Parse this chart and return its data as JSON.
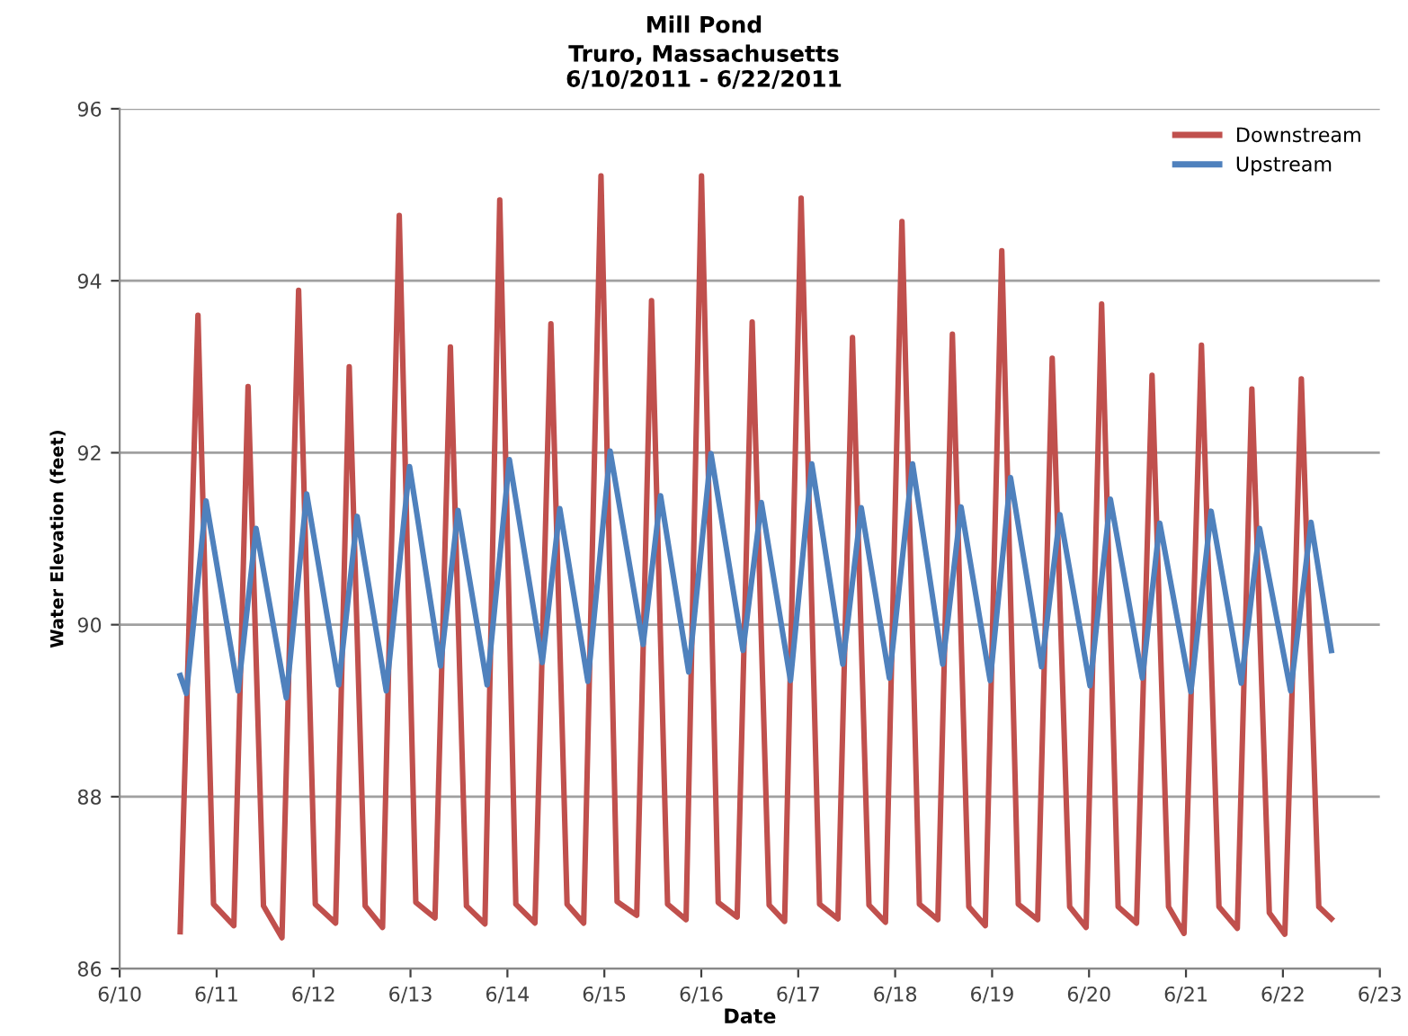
{
  "chart_data": {
    "type": "line",
    "title": "Mill Pond",
    "subtitle": "Truro, Massachusetts\n6/10/2011 - 6/22/2011",
    "xlabel": "Date",
    "ylabel": "Water Elevation (feet)",
    "xlim": [
      "2011-06-10",
      "2011-06-23"
    ],
    "xticks": [
      {
        "value": "2011-06-10",
        "label": "6/10"
      },
      {
        "value": "2011-06-11",
        "label": "6/11"
      },
      {
        "value": "2011-06-12",
        "label": "6/12"
      },
      {
        "value": "2011-06-13",
        "label": "6/13"
      },
      {
        "value": "2011-06-14",
        "label": "6/14"
      },
      {
        "value": "2011-06-15",
        "label": "6/15"
      },
      {
        "value": "2011-06-16",
        "label": "6/16"
      },
      {
        "value": "2011-06-17",
        "label": "6/17"
      },
      {
        "value": "2011-06-18",
        "label": "6/18"
      },
      {
        "value": "2011-06-19",
        "label": "6/19"
      },
      {
        "value": "2011-06-20",
        "label": "6/20"
      },
      {
        "value": "2011-06-21",
        "label": "6/21"
      },
      {
        "value": "2011-06-22",
        "label": "6/22"
      },
      {
        "value": "2011-06-23",
        "label": "6/23"
      }
    ],
    "ylim": [
      86,
      96
    ],
    "yticks": [
      86,
      88,
      90,
      92,
      94,
      96
    ],
    "grid": "y",
    "legend": "top right",
    "marker": "none",
    "line_style": "solid",
    "series": [
      {
        "name": "Downstream",
        "color": "#c0504d",
        "x": [
          "2011-06-10T14:59",
          "2011-06-10T19:23",
          "2011-06-10T23:14",
          "2011-06-11T04:16",
          "2011-06-11T07:47",
          "2011-06-11T11:36",
          "2011-06-11T16:11",
          "2011-06-11T20:18",
          "2011-06-12T00:26",
          "2011-06-12T05:28",
          "2011-06-12T08:50",
          "2011-06-12T12:47",
          "2011-06-12T17:05",
          "2011-06-12T21:13",
          "2011-06-13T01:19",
          "2011-06-13T06:04",
          "2011-06-13T09:53",
          "2011-06-13T13:51",
          "2011-06-13T18:26",
          "2011-06-13T22:06",
          "2011-06-14T02:05",
          "2011-06-14T06:49",
          "2011-06-14T10:46",
          "2011-06-14T14:46",
          "2011-06-14T18:53",
          "2011-06-14T23:10",
          "2011-06-15T03:09",
          "2011-06-15T08:01",
          "2011-06-15T11:41",
          "2011-06-15T15:39",
          "2011-06-15T20:14",
          "2011-06-16T00:03",
          "2011-06-16T04:11",
          "2011-06-16T08:53",
          "2011-06-16T12:36",
          "2011-06-16T16:48",
          "2011-06-16T20:38",
          "2011-06-17T00:43",
          "2011-06-17T05:17",
          "2011-06-17T09:50",
          "2011-06-17T13:26",
          "2011-06-17T17:31",
          "2011-06-17T21:36",
          "2011-06-18T01:41",
          "2011-06-18T06:00",
          "2011-06-18T10:34",
          "2011-06-18T14:10",
          "2011-06-18T18:14",
          "2011-06-18T22:19",
          "2011-06-19T02:24",
          "2011-06-19T06:29",
          "2011-06-19T11:17",
          "2011-06-19T14:53",
          "2011-06-19T19:12",
          "2011-06-19T23:17",
          "2011-06-20T03:07",
          "2011-06-20T07:12",
          "2011-06-20T11:46",
          "2011-06-20T15:36",
          "2011-06-20T19:41",
          "2011-06-20T23:31",
          "2011-06-21T03:50",
          "2011-06-21T08:10",
          "2011-06-21T12:43",
          "2011-06-21T16:19",
          "2011-06-21T20:38",
          "2011-06-22T00:29",
          "2011-06-22T04:34",
          "2011-06-22T08:53",
          "2011-06-22T12:00"
        ],
        "values": [
          86.43,
          93.6,
          86.75,
          86.5,
          92.77,
          86.73,
          86.36,
          93.89,
          86.75,
          86.53,
          93.0,
          86.73,
          86.48,
          94.76,
          86.77,
          86.59,
          93.23,
          86.73,
          86.52,
          94.94,
          86.75,
          86.53,
          93.5,
          86.75,
          86.53,
          95.22,
          86.78,
          86.62,
          93.77,
          86.75,
          86.57,
          95.22,
          86.77,
          86.6,
          93.52,
          86.74,
          86.55,
          94.96,
          86.75,
          86.58,
          93.34,
          86.74,
          86.54,
          94.69,
          86.75,
          86.57,
          93.38,
          86.72,
          86.5,
          94.35,
          86.75,
          86.57,
          93.1,
          86.72,
          86.48,
          93.73,
          86.72,
          86.53,
          92.9,
          86.72,
          86.41,
          93.25,
          86.72,
          86.47,
          92.74,
          86.65,
          86.4,
          92.86,
          86.72,
          86.58
        ]
      },
      {
        "name": "Upstream",
        "color": "#4f81bd",
        "x": [
          "2011-06-10T14:59",
          "2011-06-10T16:31",
          "2011-06-10T21:23",
          "2011-06-11T05:20",
          "2011-06-11T09:46",
          "2011-06-11T17:15",
          "2011-06-11T22:18",
          "2011-06-12T06:14",
          "2011-06-12T10:48",
          "2011-06-12T18:00",
          "2011-06-12T23:46",
          "2011-06-13T07:26",
          "2011-06-13T11:46",
          "2011-06-13T18:58",
          "2011-06-14T00:29",
          "2011-06-14T08:38",
          "2011-06-14T12:58",
          "2011-06-14T19:55",
          "2011-06-15T01:26",
          "2011-06-15T09:36",
          "2011-06-15T13:55",
          "2011-06-15T20:53",
          "2011-06-16T02:24",
          "2011-06-16T10:19",
          "2011-06-16T14:53",
          "2011-06-16T22:05",
          "2011-06-17T03:22",
          "2011-06-17T11:02",
          "2011-06-17T15:36",
          "2011-06-17T22:34",
          "2011-06-18T04:19",
          "2011-06-18T11:46",
          "2011-06-18T16:19",
          "2011-06-18T23:31",
          "2011-06-19T04:34",
          "2011-06-19T12:14",
          "2011-06-19T16:48",
          "2011-06-20T00:14",
          "2011-06-20T05:17",
          "2011-06-20T13:12",
          "2011-06-20T17:31",
          "2011-06-21T01:12",
          "2011-06-21T06:14",
          "2011-06-21T13:41",
          "2011-06-21T18:14",
          "2011-06-22T01:55",
          "2011-06-22T06:58",
          "2011-06-22T12:00"
        ],
        "values": [
          89.41,
          89.2,
          91.44,
          89.23,
          91.12,
          89.15,
          91.52,
          89.3,
          91.26,
          89.23,
          91.84,
          89.52,
          91.33,
          89.3,
          91.92,
          89.56,
          91.35,
          89.34,
          92.02,
          89.77,
          91.5,
          89.45,
          91.99,
          89.7,
          91.42,
          89.35,
          91.87,
          89.54,
          91.36,
          89.38,
          91.87,
          89.54,
          91.37,
          89.35,
          91.71,
          89.51,
          91.28,
          89.29,
          91.46,
          89.38,
          91.18,
          89.22,
          91.32,
          89.32,
          91.12,
          89.23,
          91.19,
          89.7
        ]
      }
    ]
  }
}
